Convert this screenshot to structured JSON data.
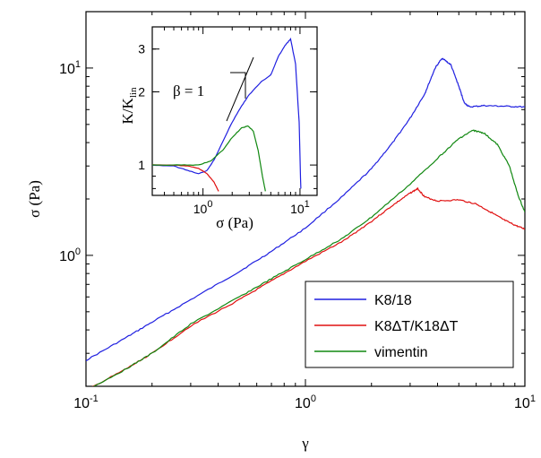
{
  "chart_data": [
    {
      "type": "line",
      "xlabel": "γ",
      "ylabel": "σ (Pa)",
      "xscale": "log",
      "yscale": "log",
      "xlim": [
        0.1,
        10
      ],
      "ylim": [
        0.2,
        20
      ],
      "x_ticks": [
        {
          "v": 0.1,
          "m": "10",
          "e": "-1"
        },
        {
          "v": 1,
          "m": "10",
          "e": "0"
        },
        {
          "v": 10,
          "m": "10",
          "e": "1"
        }
      ],
      "y_ticks": [
        {
          "v": 1,
          "m": "10",
          "e": "0"
        },
        {
          "v": 10,
          "m": "10",
          "e": "1"
        }
      ],
      "legend_position": "bottom-right",
      "series": [
        {
          "name": "K8/18",
          "color": "#1f1fe0",
          "points": [
            [
              0.1,
              0.275
            ],
            [
              0.15,
              0.36
            ],
            [
              0.2,
              0.44
            ],
            [
              0.3,
              0.58
            ],
            [
              0.5,
              0.82
            ],
            [
              0.7,
              1.05
            ],
            [
              1.0,
              1.4
            ],
            [
              1.5,
              2.1
            ],
            [
              2.0,
              2.9
            ],
            [
              2.5,
              4.0
            ],
            [
              3.0,
              5.4
            ],
            [
              3.5,
              7.3
            ],
            [
              3.9,
              10.0
            ],
            [
              4.2,
              11.3
            ],
            [
              4.6,
              10.4
            ],
            [
              5.0,
              8.0
            ],
            [
              5.3,
              6.5
            ],
            [
              5.6,
              6.2
            ],
            [
              6.5,
              6.3
            ],
            [
              8.0,
              6.25
            ],
            [
              10.0,
              6.2
            ]
          ]
        },
        {
          "name": "K8ΔT/K18ΔT",
          "color": "#e01010",
          "points": [
            [
              0.1,
              0.19
            ],
            [
              0.15,
              0.245
            ],
            [
              0.2,
              0.3
            ],
            [
              0.3,
              0.42
            ],
            [
              0.5,
              0.58
            ],
            [
              0.7,
              0.73
            ],
            [
              1.0,
              0.93
            ],
            [
              1.5,
              1.2
            ],
            [
              2.0,
              1.52
            ],
            [
              2.5,
              1.85
            ],
            [
              3.0,
              2.15
            ],
            [
              3.25,
              2.27
            ],
            [
              3.5,
              2.05
            ],
            [
              4.0,
              1.95
            ],
            [
              5.0,
              1.98
            ],
            [
              6.0,
              1.88
            ],
            [
              7.0,
              1.7
            ],
            [
              8.0,
              1.55
            ],
            [
              9.0,
              1.45
            ],
            [
              10.0,
              1.38
            ]
          ]
        },
        {
          "name": "vimentin",
          "color": "#118811",
          "points": [
            [
              0.1,
              0.19
            ],
            [
              0.15,
              0.245
            ],
            [
              0.2,
              0.3
            ],
            [
              0.3,
              0.43
            ],
            [
              0.5,
              0.6
            ],
            [
              0.7,
              0.75
            ],
            [
              1.0,
              0.95
            ],
            [
              1.5,
              1.25
            ],
            [
              2.0,
              1.6
            ],
            [
              3.0,
              2.4
            ],
            [
              4.0,
              3.3
            ],
            [
              5.0,
              4.2
            ],
            [
              5.8,
              4.65
            ],
            [
              6.5,
              4.5
            ],
            [
              7.5,
              3.9
            ],
            [
              8.5,
              3.0
            ],
            [
              9.3,
              2.1
            ],
            [
              10.0,
              1.7
            ]
          ]
        }
      ]
    },
    {
      "type": "line",
      "xlabel": "σ (Pa)",
      "ylabel_main": "K/K",
      "ylabel_sub": "lin",
      "xscale": "log",
      "yscale": "log",
      "xlim": [
        0.3,
        15
      ],
      "ylim": [
        0.75,
        3.7
      ],
      "x_ticks": [
        {
          "v": 1,
          "m": "10",
          "e": "0"
        },
        {
          "v": 10,
          "m": "10",
          "e": "1"
        }
      ],
      "y_ticks": [
        {
          "v": 1,
          "label": "1"
        },
        {
          "v": 2,
          "label": "2"
        },
        {
          "v": 3,
          "label": "3"
        }
      ],
      "annotation": "β = 1",
      "series": [
        {
          "color": "#1f1fe0",
          "points": [
            [
              0.3,
              1.0
            ],
            [
              0.5,
              0.99
            ],
            [
              0.7,
              0.95
            ],
            [
              0.9,
              0.92
            ],
            [
              1.1,
              0.95
            ],
            [
              1.3,
              1.05
            ],
            [
              1.6,
              1.25
            ],
            [
              2.0,
              1.5
            ],
            [
              2.5,
              1.75
            ],
            [
              3.0,
              1.95
            ],
            [
              4.0,
              2.2
            ],
            [
              5.0,
              2.35
            ],
            [
              6.0,
              2.8
            ],
            [
              7.0,
              3.1
            ],
            [
              8.0,
              3.3
            ],
            [
              9.0,
              2.6
            ],
            [
              9.8,
              1.5
            ],
            [
              10.2,
              0.8
            ]
          ]
        },
        {
          "color": "#e01010",
          "points": [
            [
              0.3,
              1.0
            ],
            [
              0.5,
              1.0
            ],
            [
              0.7,
              0.99
            ],
            [
              0.9,
              0.97
            ],
            [
              1.1,
              0.92
            ],
            [
              1.3,
              0.85
            ],
            [
              1.45,
              0.78
            ]
          ]
        },
        {
          "color": "#118811",
          "points": [
            [
              0.3,
              1.0
            ],
            [
              0.6,
              1.0
            ],
            [
              0.9,
              1.0
            ],
            [
              1.2,
              1.04
            ],
            [
              1.6,
              1.15
            ],
            [
              2.0,
              1.3
            ],
            [
              2.5,
              1.42
            ],
            [
              2.9,
              1.45
            ],
            [
              3.3,
              1.38
            ],
            [
              3.7,
              1.15
            ],
            [
              4.1,
              0.9
            ],
            [
              4.4,
              0.78
            ]
          ]
        }
      ]
    }
  ]
}
